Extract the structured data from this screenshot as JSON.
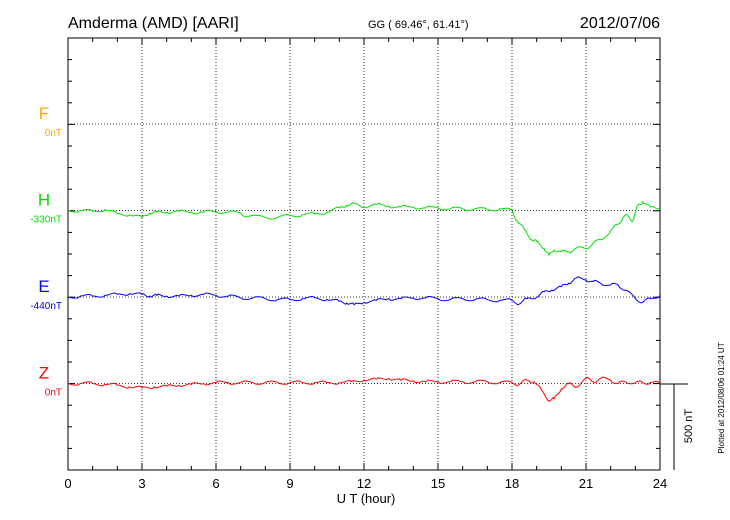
{
  "header": {
    "station": "Amderma (AMD)  [AARI]",
    "coords": "GG ( 69.46°,  61.41°)",
    "date": "2012/07/06"
  },
  "footer_note": "Plotted at 2012/08/06 01:24 UT",
  "scale_bar": {
    "label": "500 nT",
    "value": 500
  },
  "chart_data": {
    "type": "line",
    "title": "",
    "xlabel": "U T (hour)",
    "xlim": [
      0,
      24
    ],
    "x_ticks": [
      "0",
      "3",
      "6",
      "9",
      "12",
      "15",
      "18",
      "21",
      "24"
    ],
    "ylim_nT_per_panel_div": 125,
    "grid": true,
    "series": [
      {
        "name": "F",
        "baseline_label": "0nT",
        "color": "#ffa500",
        "baseline_level": 4,
        "x": [],
        "y": []
      },
      {
        "name": "H",
        "baseline_label": "-330nT",
        "color": "#00e000",
        "baseline_level": 3,
        "x": [
          0,
          0.5,
          1,
          1.5,
          2,
          2.5,
          3,
          3.3,
          3.6,
          4,
          4.5,
          5,
          5.5,
          6,
          6.5,
          7,
          7.3,
          8,
          8.5,
          9,
          9.5,
          10,
          10.5,
          11,
          11.3,
          11.6,
          12,
          12.5,
          13,
          13.5,
          14,
          14.5,
          15,
          15.5,
          16,
          16.5,
          17,
          17.5,
          18,
          18.2,
          18.5,
          18.8,
          19,
          19.3,
          19.5,
          19.7,
          20,
          20.3,
          20.6,
          21,
          21.3,
          21.6,
          22,
          22.3,
          22.5,
          22.7,
          22.9,
          23.1,
          23.3,
          23.6,
          24
        ],
        "y": [
          0,
          0,
          -5,
          5,
          -20,
          -25,
          -40,
          -15,
          -10,
          -10,
          -5,
          -10,
          -10,
          -5,
          -10,
          -15,
          -35,
          -40,
          -40,
          -30,
          -25,
          -20,
          -10,
          15,
          30,
          40,
          20,
          35,
          25,
          20,
          20,
          15,
          15,
          10,
          10,
          10,
          5,
          10,
          0,
          -60,
          -110,
          -170,
          -180,
          -220,
          -260,
          -230,
          -240,
          -240,
          -220,
          -220,
          -190,
          -170,
          -120,
          -80,
          -40,
          -30,
          -60,
          30,
          50,
          20,
          15
        ]
      },
      {
        "name": "E",
        "baseline_label": "-440nT",
        "color": "#0000ff",
        "baseline_level": 2,
        "x": [
          0,
          0.5,
          1,
          1.5,
          2,
          2.5,
          3,
          3.3,
          3.6,
          4,
          4.5,
          5,
          5.5,
          6,
          6.5,
          7,
          7.5,
          8,
          8.5,
          9,
          9.5,
          10,
          10.5,
          11,
          11.3,
          11.6,
          12,
          12.5,
          13,
          13.5,
          14,
          14.5,
          15,
          15.5,
          16,
          16.5,
          17,
          17.5,
          18,
          18.3,
          18.6,
          19,
          19.3,
          19.6,
          20,
          20.3,
          20.6,
          21,
          21.3,
          21.6,
          22,
          22.3,
          22.6,
          23,
          23.3,
          23.6,
          24
        ],
        "y": [
          0,
          5,
          5,
          10,
          15,
          20,
          15,
          5,
          10,
          5,
          5,
          10,
          15,
          10,
          5,
          -5,
          -5,
          -10,
          -15,
          -15,
          -10,
          -5,
          -15,
          -25,
          -35,
          -45,
          -30,
          -20,
          -10,
          -10,
          -5,
          -5,
          -10,
          -15,
          -10,
          -15,
          -15,
          -20,
          -20,
          -40,
          -10,
          0,
          30,
          40,
          60,
          80,
          110,
          100,
          90,
          80,
          70,
          70,
          40,
          -10,
          -30,
          -10,
          10
        ]
      },
      {
        "name": "Z",
        "baseline_label": "0nT",
        "color": "#ff0000",
        "baseline_level": 1,
        "x": [
          0,
          0.5,
          1,
          1.5,
          2,
          2.5,
          3,
          3.5,
          4,
          4.5,
          5,
          5.5,
          6,
          6.5,
          7,
          7.5,
          8,
          8.5,
          9,
          9.5,
          10,
          10.5,
          11,
          11.5,
          12,
          12.5,
          13,
          13.5,
          14,
          14.5,
          15,
          15.5,
          16,
          16.5,
          17,
          17.5,
          18,
          18.3,
          18.6,
          18.9,
          19.2,
          19.5,
          19.7,
          20,
          20.3,
          20.6,
          21,
          21.3,
          21.6,
          22,
          22.3,
          22.6,
          23,
          23.3,
          23.6,
          24
        ],
        "y": [
          0,
          0,
          0,
          -5,
          -10,
          -20,
          -25,
          -20,
          -15,
          -10,
          -5,
          0,
          5,
          5,
          5,
          5,
          5,
          5,
          5,
          5,
          5,
          5,
          5,
          10,
          20,
          25,
          30,
          20,
          15,
          10,
          10,
          10,
          10,
          10,
          10,
          5,
          5,
          -5,
          20,
          10,
          -40,
          -100,
          -90,
          -30,
          0,
          -20,
          30,
          10,
          30,
          20,
          0,
          10,
          5,
          5,
          5,
          0
        ]
      }
    ]
  }
}
